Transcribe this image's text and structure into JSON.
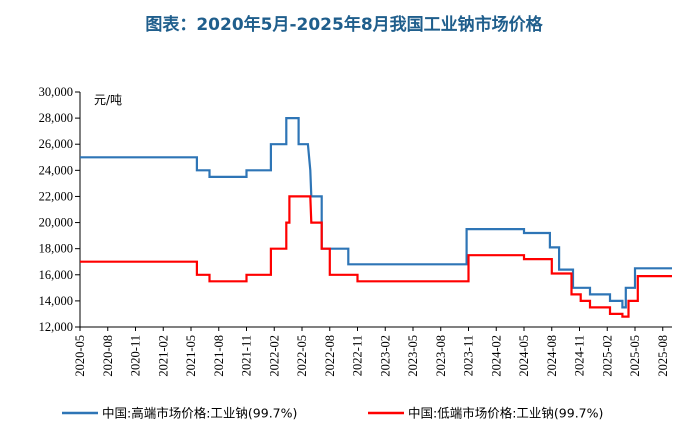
{
  "chart_data": {
    "type": "line",
    "title": "图表：2020年5月-2025年8月我国工业钠市场价格",
    "unit_label": "元/吨",
    "xlabel": "",
    "ylabel": "",
    "ylim": [
      12000,
      30000
    ],
    "y_ticks": [
      "12,000",
      "14,000",
      "16,000",
      "18,000",
      "20,000",
      "22,000",
      "24,000",
      "26,000",
      "28,000",
      "30,000"
    ],
    "y_tick_values": [
      12000,
      14000,
      16000,
      18000,
      20000,
      22000,
      24000,
      26000,
      28000,
      30000
    ],
    "x_ticks": [
      "2020-05",
      "2020-08",
      "2020-11",
      "2021-02",
      "2021-05",
      "2021-08",
      "2021-11",
      "2022-02",
      "2022-05",
      "2022-08",
      "2022-11",
      "2023-02",
      "2023-05",
      "2023-08",
      "2023-11",
      "2024-02",
      "2024-05",
      "2024-08",
      "2024-11",
      "2025-02",
      "2025-05",
      "2025-08"
    ],
    "x_range": [
      "2020-05",
      "2025-09"
    ],
    "legend_position": "bottom",
    "grid": false,
    "series": [
      {
        "name": "中国:高端市场价格:工业钠(99.7%)",
        "color": "#2e75b6",
        "points": [
          [
            "2020-05-01",
            25000
          ],
          [
            "2021-05-20",
            25000
          ],
          [
            "2021-05-20",
            24000
          ],
          [
            "2021-07-01",
            24000
          ],
          [
            "2021-07-01",
            23500
          ],
          [
            "2021-11-01",
            23500
          ],
          [
            "2021-11-01",
            24000
          ],
          [
            "2022-01-20",
            24000
          ],
          [
            "2022-01-20",
            26000
          ],
          [
            "2022-03-10",
            26000
          ],
          [
            "2022-03-10",
            28000
          ],
          [
            "2022-04-20",
            28000
          ],
          [
            "2022-04-20",
            26000
          ],
          [
            "2022-05-20",
            26000
          ],
          [
            "2022-05-28",
            24000
          ],
          [
            "2022-06-01",
            22000
          ],
          [
            "2022-07-05",
            22000
          ],
          [
            "2022-07-05",
            18000
          ],
          [
            "2022-10-01",
            18000
          ],
          [
            "2022-10-01",
            16800
          ],
          [
            "2023-10-25",
            16800
          ],
          [
            "2023-10-25",
            19500
          ],
          [
            "2024-05-01",
            19500
          ],
          [
            "2024-05-01",
            19200
          ],
          [
            "2024-07-25",
            19200
          ],
          [
            "2024-07-25",
            18100
          ],
          [
            "2024-08-25",
            18100
          ],
          [
            "2024-08-25",
            16400
          ],
          [
            "2024-10-10",
            16400
          ],
          [
            "2024-10-10",
            15000
          ],
          [
            "2024-12-05",
            15000
          ],
          [
            "2024-12-05",
            14500
          ],
          [
            "2025-02-10",
            14500
          ],
          [
            "2025-02-10",
            14000
          ],
          [
            "2025-03-20",
            14000
          ],
          [
            "2025-03-20",
            13500
          ],
          [
            "2025-04-01",
            13500
          ],
          [
            "2025-04-01",
            15000
          ],
          [
            "2025-05-01",
            15000
          ],
          [
            "2025-05-01",
            16500
          ],
          [
            "2025-09-01",
            16500
          ]
        ]
      },
      {
        "name": "中国:低端市场价格:工业钠(99.7%)",
        "color": "#ff0000",
        "points": [
          [
            "2020-05-01",
            17000
          ],
          [
            "2021-05-20",
            17000
          ],
          [
            "2021-05-20",
            16000
          ],
          [
            "2021-07-01",
            16000
          ],
          [
            "2021-07-01",
            15500
          ],
          [
            "2021-11-01",
            15500
          ],
          [
            "2021-11-01",
            16000
          ],
          [
            "2022-01-20",
            16000
          ],
          [
            "2022-01-20",
            18000
          ],
          [
            "2022-03-10",
            18000
          ],
          [
            "2022-03-10",
            20000
          ],
          [
            "2022-03-20",
            20000
          ],
          [
            "2022-03-20",
            22000
          ],
          [
            "2022-05-28",
            22000
          ],
          [
            "2022-06-01",
            20000
          ],
          [
            "2022-07-05",
            20000
          ],
          [
            "2022-07-05",
            18000
          ],
          [
            "2022-08-01",
            18000
          ],
          [
            "2022-08-01",
            16000
          ],
          [
            "2022-11-01",
            16000
          ],
          [
            "2022-11-01",
            15500
          ],
          [
            "2023-11-01",
            15500
          ],
          [
            "2023-11-01",
            17500
          ],
          [
            "2024-05-01",
            17500
          ],
          [
            "2024-05-01",
            17200
          ],
          [
            "2024-08-01",
            17200
          ],
          [
            "2024-08-01",
            16100
          ],
          [
            "2024-10-05",
            16100
          ],
          [
            "2024-10-05",
            14500
          ],
          [
            "2024-11-05",
            14500
          ],
          [
            "2024-11-05",
            14000
          ],
          [
            "2024-12-05",
            14000
          ],
          [
            "2024-12-05",
            13500
          ],
          [
            "2025-02-10",
            13500
          ],
          [
            "2025-02-10",
            13000
          ],
          [
            "2025-03-20",
            13000
          ],
          [
            "2025-03-20",
            12800
          ],
          [
            "2025-04-10",
            12800
          ],
          [
            "2025-04-10",
            14000
          ],
          [
            "2025-05-10",
            14000
          ],
          [
            "2025-05-10",
            15900
          ],
          [
            "2025-09-01",
            15900
          ]
        ]
      }
    ]
  }
}
